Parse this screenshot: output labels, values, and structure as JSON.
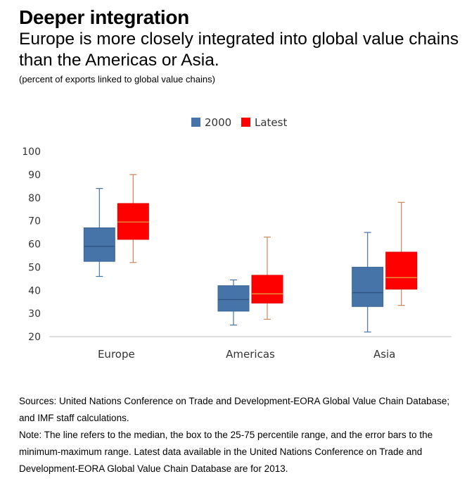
{
  "header": {
    "title": "Deeper integration",
    "subtitle": "Europe is more closely integrated into global value chains than the Americas or Asia.",
    "unit": "(percent of exports linked to global value chains)"
  },
  "footer": {
    "sources": "Sources: United Nations Conference on Trade and Development-EORA Global Value Chain Database; and IMF staff calculations.",
    "note": "Note: The line refers to the median, the box to the 25-75 percentile range, and the error bars to the minimum-maximum range. Latest data available in the United Nations Conference on Trade and Development-EORA Global Value Chain Database are for 2013."
  },
  "colors": {
    "series_2000": "#4674a8",
    "series_latest": "#ff0000",
    "whisker_2000": "#4674a8",
    "whisker_latest": "#c8875a",
    "axis": "#bfbfbf"
  },
  "chart_data": {
    "type": "boxplot",
    "categories": [
      "Europe",
      "Americas",
      "Asia"
    ],
    "ylim": [
      20,
      100
    ],
    "yticks": [
      20,
      30,
      40,
      50,
      60,
      70,
      80,
      90,
      100
    ],
    "legend_position": "top-center",
    "grid": false,
    "series": [
      {
        "name": "2000",
        "boxes": [
          {
            "min": 46,
            "q1": 52.5,
            "median": 59,
            "q3": 67,
            "max": 84
          },
          {
            "min": 25,
            "q1": 31,
            "median": 36,
            "q3": 42,
            "max": 44.5
          },
          {
            "min": 22,
            "q1": 33,
            "median": 39,
            "q3": 50,
            "max": 65
          }
        ]
      },
      {
        "name": "Latest",
        "boxes": [
          {
            "min": 52,
            "q1": 62,
            "median": 69.5,
            "q3": 77.5,
            "max": 90
          },
          {
            "min": 27.5,
            "q1": 34.5,
            "median": 38.5,
            "q3": 46.5,
            "max": 63
          },
          {
            "min": 33.5,
            "q1": 40.5,
            "median": 45.5,
            "q3": 56.5,
            "max": 78
          }
        ]
      }
    ]
  }
}
